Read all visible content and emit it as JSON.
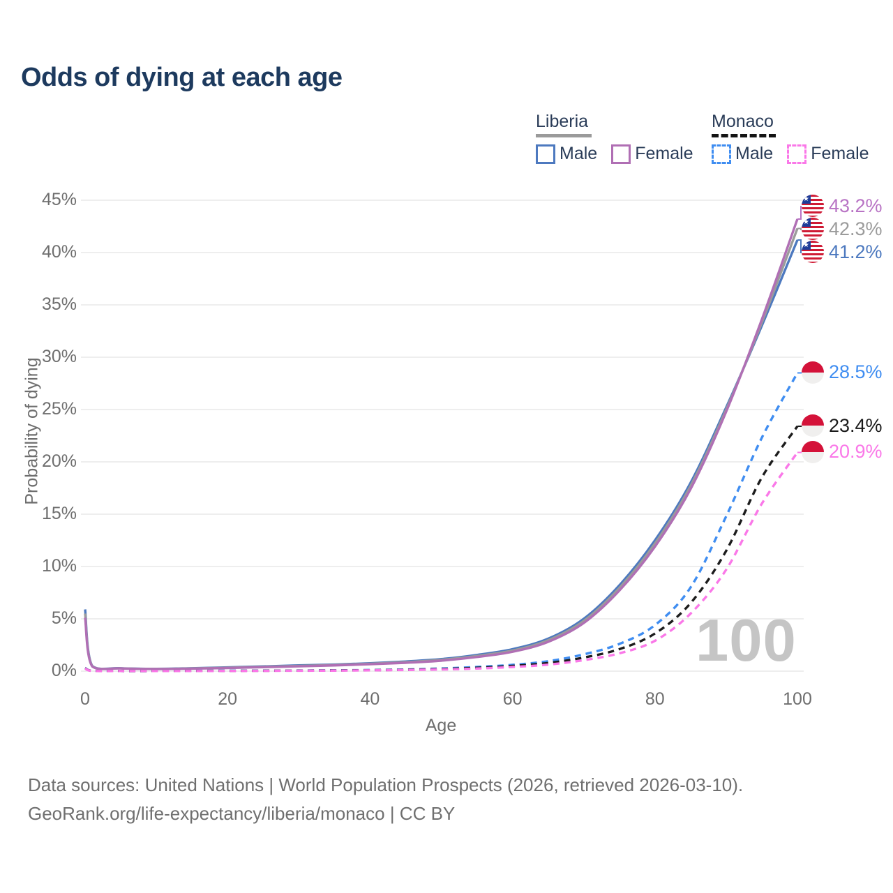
{
  "title": "Odds of dying at each age",
  "legend": {
    "groups": [
      {
        "label": "Liberia",
        "line_style": "solid",
        "underline_color": "#9a9a9a",
        "items": [
          {
            "label": "Male",
            "color": "#4d79bf"
          },
          {
            "label": "Female",
            "color": "#b06fb4"
          }
        ]
      },
      {
        "label": "Monaco",
        "line_style": "dashed",
        "underline_color": "#141414",
        "items": [
          {
            "label": "Male",
            "color": "#3f8df1"
          },
          {
            "label": "Female",
            "color": "#fa78e8"
          }
        ]
      }
    ]
  },
  "chart_data": {
    "type": "line",
    "title": "Odds of dying at each age",
    "xlabel": "Age",
    "ylabel": "Probability of dying",
    "xlim": [
      0,
      100
    ],
    "ylim": [
      0,
      45
    ],
    "grid": true,
    "xtick_values": [
      0,
      20,
      40,
      60,
      80,
      100
    ],
    "xtick_labels": [
      "0",
      "20",
      "40",
      "60",
      "80",
      "100"
    ],
    "ytick_values": [
      0,
      5,
      10,
      15,
      20,
      25,
      30,
      35,
      40,
      45
    ],
    "ytick_labels": [
      "0%",
      "5%",
      "10%",
      "15%",
      "20%",
      "25%",
      "30%",
      "35%",
      "40%",
      "45%"
    ],
    "hover_age_watermark": "100",
    "x": [
      0,
      1,
      5,
      10,
      15,
      20,
      25,
      30,
      35,
      40,
      45,
      50,
      55,
      60,
      65,
      70,
      75,
      80,
      85,
      90,
      95,
      100
    ],
    "series": [
      {
        "name": "Liberia Male",
        "country": "Liberia",
        "color": "#4d79bf",
        "dash": false,
        "values": [
          5.9,
          0.5,
          0.28,
          0.22,
          0.28,
          0.36,
          0.45,
          0.55,
          0.63,
          0.75,
          0.92,
          1.15,
          1.55,
          2.1,
          3.1,
          5.0,
          8.2,
          12.5,
          18.0,
          25.2,
          33.0,
          41.2
        ]
      },
      {
        "name": "Liberia Both sexes",
        "country": "Liberia",
        "color": "#9b9b9b",
        "dash": false,
        "values": [
          5.5,
          0.48,
          0.27,
          0.21,
          0.26,
          0.33,
          0.41,
          0.5,
          0.59,
          0.7,
          0.86,
          1.08,
          1.45,
          1.97,
          2.95,
          4.8,
          7.95,
          12.2,
          17.7,
          25.0,
          33.3,
          42.3
        ]
      },
      {
        "name": "Liberia Female",
        "country": "Liberia",
        "color": "#b06fb4",
        "dash": false,
        "values": [
          5.1,
          0.45,
          0.26,
          0.2,
          0.24,
          0.3,
          0.38,
          0.46,
          0.55,
          0.66,
          0.8,
          1.0,
          1.35,
          1.85,
          2.8,
          4.6,
          7.7,
          11.9,
          17.4,
          24.8,
          33.6,
          43.2
        ]
      },
      {
        "name": "Monaco Male",
        "country": "Monaco",
        "color": "#3f8df1",
        "dash": true,
        "values": [
          0.3,
          0.03,
          0.01,
          0.01,
          0.02,
          0.04,
          0.05,
          0.06,
          0.08,
          0.11,
          0.16,
          0.25,
          0.4,
          0.6,
          0.95,
          1.6,
          2.6,
          4.4,
          8.0,
          14.8,
          22.3,
          28.5
        ]
      },
      {
        "name": "Monaco Both sexes",
        "country": "Monaco",
        "color": "#1c1c1c",
        "dash": true,
        "values": [
          0.28,
          0.03,
          0.01,
          0.01,
          0.02,
          0.03,
          0.04,
          0.05,
          0.07,
          0.09,
          0.13,
          0.2,
          0.32,
          0.5,
          0.78,
          1.3,
          2.1,
          3.6,
          6.5,
          11.5,
          18.5,
          23.4
        ]
      },
      {
        "name": "Monaco Female",
        "country": "Monaco",
        "color": "#fa78e8",
        "dash": true,
        "values": [
          0.25,
          0.02,
          0.01,
          0.01,
          0.01,
          0.02,
          0.03,
          0.04,
          0.05,
          0.08,
          0.11,
          0.16,
          0.25,
          0.4,
          0.62,
          1.05,
          1.7,
          2.9,
          5.5,
          9.7,
          16.0,
          20.9
        ]
      }
    ],
    "end_labels": [
      {
        "text": "43.2%",
        "value": 43.2,
        "flag": "liberia",
        "color": "#b873c4"
      },
      {
        "text": "42.3%",
        "value": 42.3,
        "flag": "liberia",
        "color": "#9b9b9b"
      },
      {
        "text": "41.2%",
        "value": 41.2,
        "flag": "liberia",
        "color": "#4d79bf"
      },
      {
        "text": "28.5%",
        "value": 28.5,
        "flag": "monaco",
        "color": "#3f8df1"
      },
      {
        "text": "23.4%",
        "value": 23.4,
        "flag": "monaco",
        "color": "#1a1a1a"
      },
      {
        "text": "20.9%",
        "value": 20.9,
        "flag": "monaco",
        "color": "#fa78e8"
      }
    ]
  },
  "footer": {
    "line1": "Data sources: United Nations | World Population Prospects (2026, retrieved 2026-03-10).",
    "line2": "GeoRank.org/life-expectancy/liberia/monaco | CC BY"
  }
}
